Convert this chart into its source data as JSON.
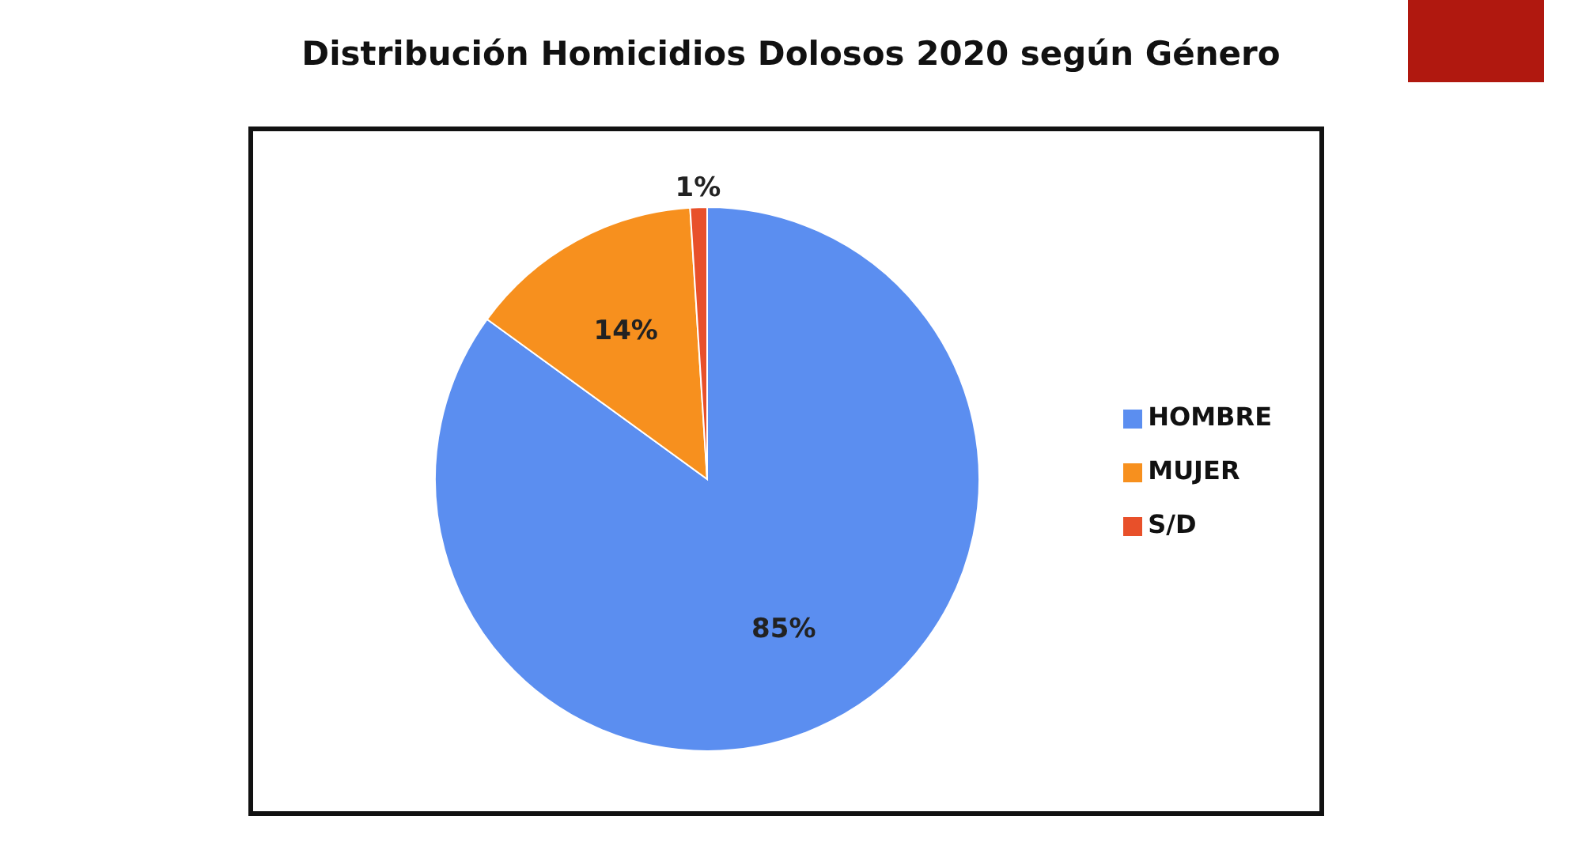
{
  "chart_data": {
    "type": "pie",
    "title": "Distribución Homicidios Dolosos 2020 según Género",
    "categories": [
      "HOMBRE",
      "MUJER",
      "S/D"
    ],
    "values": [
      85,
      14,
      1
    ],
    "colors": [
      "#5b8ef0",
      "#f7901e",
      "#e8502a"
    ],
    "value_labels": [
      "85%",
      "14%",
      "1%"
    ],
    "legend": "right"
  }
}
